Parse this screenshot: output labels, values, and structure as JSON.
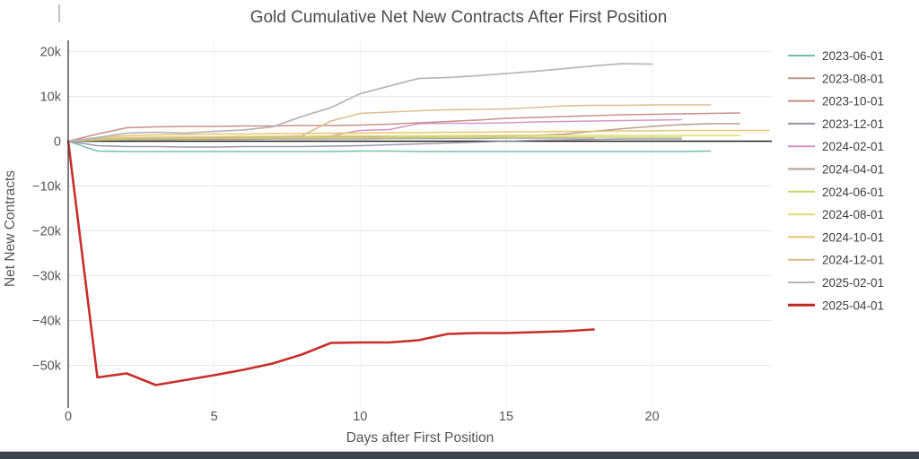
{
  "chart_data": {
    "type": "line",
    "title": "Gold Cumulative Net New Contracts After First Position",
    "xlabel": "Days after First Position",
    "ylabel": "Net New Contracts",
    "xlim": [
      0,
      24.1
    ],
    "ylim": [
      -59.5,
      22.5
    ],
    "grid": true,
    "legend_position": "right-outside",
    "x_ticks": [
      0,
      5,
      10,
      15,
      20
    ],
    "y_ticks": [
      {
        "value": 20,
        "label": "20k"
      },
      {
        "value": 10,
        "label": "10k"
      },
      {
        "value": 0,
        "label": "0"
      },
      {
        "value": -10,
        "label": "−10k"
      },
      {
        "value": -20,
        "label": "−20k"
      },
      {
        "value": -30,
        "label": "−30k"
      },
      {
        "value": -40,
        "label": "−40k"
      },
      {
        "value": -50,
        "label": "−50k"
      }
    ],
    "unit": "thousands of contracts",
    "series": [
      {
        "name": "2023-06-01",
        "color": "#74bcab",
        "width": 1.6,
        "values_k": [
          0,
          -2.2,
          -2.3,
          -2.3,
          -2.3,
          -2.3,
          -2.3,
          -2.3,
          -2.3,
          -2.3,
          -2.2,
          -2.2,
          -2.3,
          -2.3,
          -2.3,
          -2.3,
          -2.3,
          -2.3,
          -2.3,
          -2.3,
          -2.3,
          -2.3,
          -2.2
        ]
      },
      {
        "name": "2023-08-01",
        "color": "#b69a88",
        "width": 1.6,
        "values_k": [
          0,
          0.4,
          0.6,
          0.7,
          0.8,
          0.8,
          0.9,
          0.9,
          1.0,
          1.0,
          1.0,
          1.1,
          1.1,
          1.2,
          1.2,
          1.2,
          1.3,
          1.6,
          2.2,
          2.8,
          3.3,
          3.7,
          3.9,
          3.9
        ]
      },
      {
        "name": "2023-10-01",
        "color": "#c88a85",
        "width": 1.6,
        "values_k": [
          0,
          1.6,
          3.0,
          3.2,
          3.3,
          3.3,
          3.4,
          3.4,
          3.5,
          3.5,
          3.6,
          3.8,
          4.1,
          4.4,
          4.7,
          5.1,
          5.3,
          5.5,
          5.7,
          5.9,
          6.0,
          6.1,
          6.2,
          6.3
        ]
      },
      {
        "name": "2023-12-01",
        "color": "#9392a6",
        "width": 1.6,
        "values_k": [
          0,
          -1.0,
          -1.2,
          -1.2,
          -1.3,
          -1.3,
          -1.2,
          -1.2,
          -1.2,
          -1.1,
          -1.0,
          -0.8,
          -0.6,
          -0.4,
          -0.2,
          0.0,
          0.2,
          0.3,
          0.4,
          0.5,
          0.5,
          0.5
        ]
      },
      {
        "name": "2024-02-01",
        "color": "#d091c4",
        "width": 1.6,
        "values_k": [
          0,
          0.3,
          0.5,
          0.5,
          0.5,
          0.6,
          0.7,
          0.8,
          1.0,
          1.2,
          2.4,
          2.6,
          3.9,
          4.0,
          4.0,
          4.1,
          4.3,
          4.4,
          4.5,
          4.6,
          4.7,
          4.8
        ]
      },
      {
        "name": "2024-04-01",
        "color": "#a9a094",
        "width": 1.6,
        "values_k": [
          0,
          0.2,
          0.3,
          0.3,
          0.4,
          0.4,
          0.4,
          0.5,
          0.5,
          0.5,
          0.5,
          0.6,
          0.6,
          0.6,
          0.6,
          0.7,
          0.7,
          0.7,
          0.7
        ]
      },
      {
        "name": "2024-06-01",
        "color": "#c6d36c",
        "width": 1.6,
        "values_k": [
          0,
          0.3,
          0.5,
          0.6,
          0.6,
          0.7,
          0.7,
          0.7,
          0.8,
          0.8,
          0.8,
          0.8,
          0.8,
          0.9,
          0.9,
          0.9,
          0.9,
          0.9,
          0.9,
          0.9,
          0.9,
          0.9
        ]
      },
      {
        "name": "2024-08-01",
        "color": "#e2db6e",
        "width": 1.6,
        "values_k": [
          0,
          0.5,
          0.8,
          0.9,
          1.0,
          1.0,
          1.1,
          1.1,
          1.1,
          1.2,
          1.2,
          1.2,
          1.2,
          1.2,
          1.3,
          1.3,
          1.3,
          1.3,
          1.3,
          1.3,
          1.3,
          1.3,
          1.3,
          1.3
        ]
      },
      {
        "name": "2024-10-01",
        "color": "#e5c36c",
        "width": 1.6,
        "values_k": [
          0,
          0.8,
          1.2,
          1.4,
          1.5,
          1.6,
          1.6,
          1.7,
          1.7,
          1.8,
          1.8,
          1.9,
          1.9,
          2.0,
          2.0,
          2.1,
          2.1,
          2.2,
          2.2,
          2.3,
          2.3,
          2.4,
          2.4,
          2.4,
          2.4
        ]
      },
      {
        "name": "2024-12-01",
        "color": "#d8ba8c",
        "width": 1.6,
        "values_k": [
          0,
          0.5,
          0.7,
          0.8,
          0.8,
          0.9,
          0.9,
          1.0,
          1.2,
          4.5,
          6.2,
          6.5,
          6.8,
          7.0,
          7.1,
          7.2,
          7.5,
          7.9,
          8.0,
          8.0,
          8.1,
          8.1,
          8.1
        ]
      },
      {
        "name": "2025-02-01",
        "color": "#b5b3b8",
        "width": 1.8,
        "values_k": [
          0,
          0.8,
          1.8,
          2.0,
          1.8,
          2.2,
          2.5,
          3.2,
          5.5,
          7.5,
          10.6,
          12.3,
          14.0,
          14.2,
          14.6,
          15.1,
          15.6,
          16.2,
          16.8,
          17.3,
          17.2
        ]
      },
      {
        "name": "2025-04-01",
        "color": "#c42420",
        "width": 2.6,
        "values_k": [
          0,
          -52.7,
          -51.8,
          -54.4,
          -53.3,
          -52.2,
          -51.0,
          -49.6,
          -47.6,
          -45.0,
          -44.9,
          -44.9,
          -44.4,
          -43.0,
          -42.8,
          -42.8,
          -42.6,
          -42.4,
          -42.0
        ]
      }
    ],
    "zero_line": true
  },
  "style_colors": {
    "title_text": "#4a4a4a",
    "axis_text": "#555555",
    "legend_text": "#3d3d3d",
    "grid_line": "#e8e8e8",
    "axis_line": "#3a3a3a",
    "zero_line": "#222222",
    "bottom_bar": "#3d424d"
  }
}
